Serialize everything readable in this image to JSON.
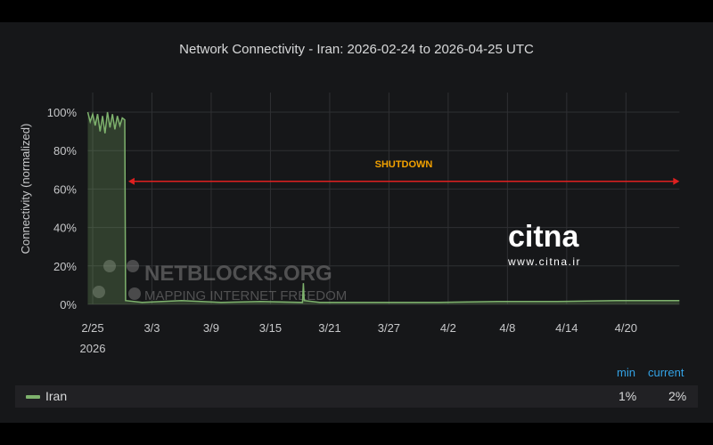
{
  "chart_data": {
    "type": "area",
    "title": "Network Connectivity - Iran: 2026-02-24 to 2026-04-25 UTC",
    "ylabel": "Connectivity (normalized)",
    "xlabel": "",
    "ylim": [
      0,
      100
    ],
    "xlim": [
      "2026-02-24T12:00",
      "2026-04-25T10:00"
    ],
    "yticks": [
      "0%",
      "20%",
      "40%",
      "60%",
      "80%",
      "100%"
    ],
    "xticks": [
      {
        "date": "2026-02-25",
        "label": "2/25",
        "sub": "2026"
      },
      {
        "date": "2026-03-03",
        "label": "3/3"
      },
      {
        "date": "2026-03-09",
        "label": "3/9"
      },
      {
        "date": "2026-03-15",
        "label": "3/15"
      },
      {
        "date": "2026-03-21",
        "label": "3/21"
      },
      {
        "date": "2026-03-27",
        "label": "3/27"
      },
      {
        "date": "2026-04-02",
        "label": "4/2"
      },
      {
        "date": "2026-04-08",
        "label": "4/8"
      },
      {
        "date": "2026-04-14",
        "label": "4/14"
      },
      {
        "date": "2026-04-20",
        "label": "4/20"
      }
    ],
    "grid": true,
    "series": [
      {
        "name": "Iran",
        "color": "#7eb26d",
        "points": [
          [
            "2026-02-24T12:00",
            100
          ],
          [
            "2026-02-24T18:00",
            95
          ],
          [
            "2026-02-25T00:00",
            99
          ],
          [
            "2026-02-25T06:00",
            93
          ],
          [
            "2026-02-25T12:00",
            99
          ],
          [
            "2026-02-25T18:00",
            90
          ],
          [
            "2026-02-26T00:00",
            98
          ],
          [
            "2026-02-26T06:00",
            89
          ],
          [
            "2026-02-26T12:00",
            100
          ],
          [
            "2026-02-26T18:00",
            92
          ],
          [
            "2026-02-27T00:00",
            99
          ],
          [
            "2026-02-27T06:00",
            91
          ],
          [
            "2026-02-27T12:00",
            98
          ],
          [
            "2026-02-27T18:00",
            93
          ],
          [
            "2026-02-28T00:00",
            97
          ],
          [
            "2026-02-28T06:00",
            96
          ],
          [
            "2026-02-28T08:00",
            2
          ],
          [
            "2026-03-02T00:00",
            1
          ],
          [
            "2026-03-06T00:00",
            2
          ],
          [
            "2026-03-10T00:00",
            1
          ],
          [
            "2026-03-14T00:00",
            1.5
          ],
          [
            "2026-03-18T06:00",
            1
          ],
          [
            "2026-03-18T08:00",
            11
          ],
          [
            "2026-03-18T10:00",
            2
          ],
          [
            "2026-03-20T00:00",
            1
          ],
          [
            "2026-03-26T00:00",
            1
          ],
          [
            "2026-04-01T00:00",
            1
          ],
          [
            "2026-04-07T00:00",
            1.5
          ],
          [
            "2026-04-13T00:00",
            1.5
          ],
          [
            "2026-04-19T00:00",
            2
          ],
          [
            "2026-04-25T10:00",
            2
          ]
        ]
      }
    ],
    "annotation": {
      "text": "SHUTDOWN",
      "text_color": "#f2a100",
      "arrow_color": "#e02020",
      "from": "2026-02-28T08:00",
      "to": "2026-04-25T10:00",
      "y": 64
    },
    "legend": {
      "placement": "bottom",
      "headers": [
        "min",
        "current"
      ],
      "rows": [
        {
          "name": "Iran",
          "min": "1%",
          "current": "2%"
        }
      ]
    }
  },
  "watermarks": {
    "netblocks": "NETBLOCKS.ORG MAPPING INTERNET FREEDOM",
    "citna": "citna www.citna.ir"
  }
}
